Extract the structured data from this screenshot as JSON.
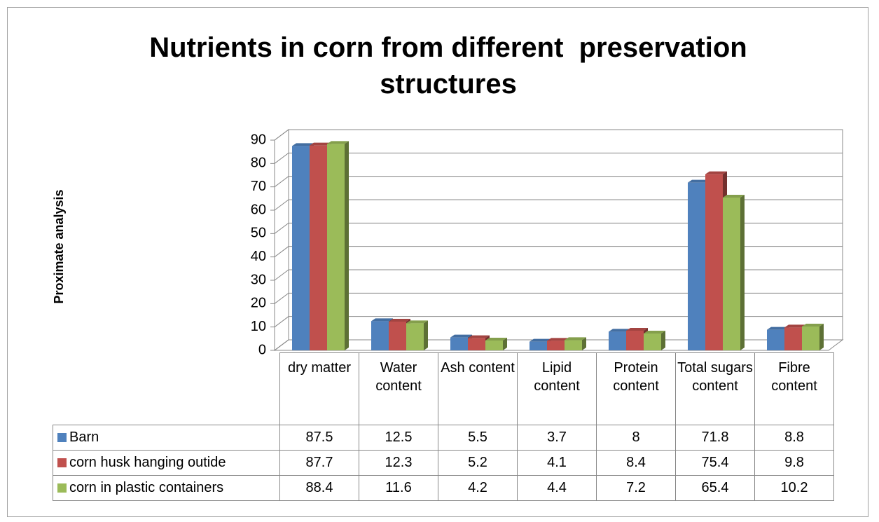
{
  "chart_data": {
    "type": "bar3d",
    "title": "Nutrients in corn from different  preservation structures",
    "y_label": "Proximate analysis",
    "categories": [
      "dry matter",
      "Water content",
      "Ash content",
      "Lipid content",
      "Protein content",
      "Total sugars content",
      "Fibre content"
    ],
    "series": [
      {
        "name": "Barn",
        "color": "#4f81bd",
        "values": [
          87.5,
          12.5,
          5.5,
          3.7,
          8,
          71.8,
          8.8
        ]
      },
      {
        "name": "corn husk hanging outide",
        "color": "#c0504d",
        "values": [
          87.7,
          12.3,
          5.2,
          4.1,
          8.4,
          75.4,
          9.8
        ]
      },
      {
        "name": "corn in plastic containers",
        "color": "#9bbb59",
        "values": [
          88.4,
          11.6,
          4.2,
          4.4,
          7.2,
          65.4,
          10.2
        ]
      }
    ],
    "ylim": [
      0,
      90
    ],
    "yticks": [
      0,
      10,
      20,
      30,
      40,
      50,
      60,
      70,
      80,
      90
    ],
    "grid": true,
    "data_table": true
  }
}
